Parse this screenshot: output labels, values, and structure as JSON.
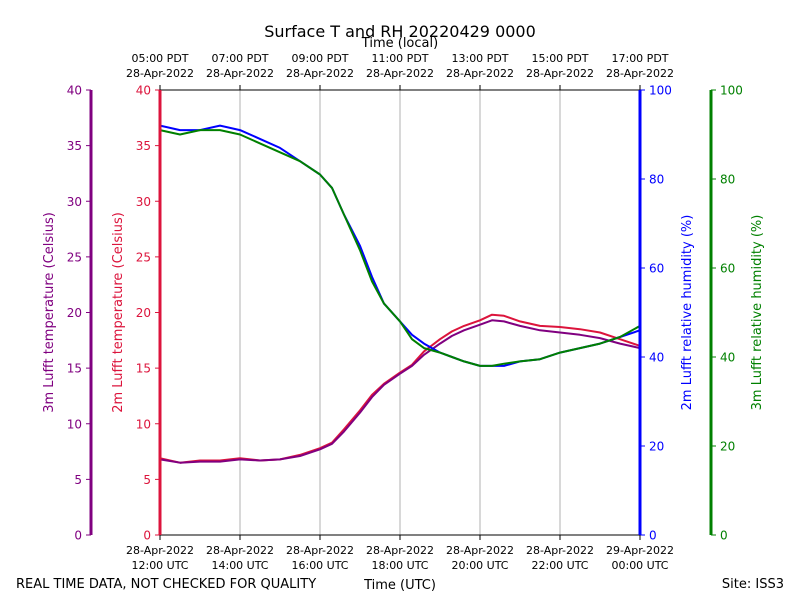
{
  "chart_data": {
    "type": "line",
    "title": "Surface T and RH 20220429 0000",
    "top_axis_title": "Time (local)",
    "xlabel": "Time (UTC)",
    "x_range_utc_hours": [
      12,
      24
    ],
    "x_ticks_utc": [
      {
        "hour": 12,
        "line1": "28-Apr-2022",
        "line2": "12:00 UTC"
      },
      {
        "hour": 14,
        "line1": "28-Apr-2022",
        "line2": "14:00 UTC"
      },
      {
        "hour": 16,
        "line1": "28-Apr-2022",
        "line2": "16:00 UTC"
      },
      {
        "hour": 18,
        "line1": "28-Apr-2022",
        "line2": "18:00 UTC"
      },
      {
        "hour": 20,
        "line1": "28-Apr-2022",
        "line2": "20:00 UTC"
      },
      {
        "hour": 22,
        "line1": "28-Apr-2022",
        "line2": "22:00 UTC"
      },
      {
        "hour": 24,
        "line1": "29-Apr-2022",
        "line2": "00:00 UTC"
      }
    ],
    "x_ticks_local": [
      {
        "hour": 12,
        "line1": "05:00 PDT",
        "line2": "28-Apr-2022"
      },
      {
        "hour": 14,
        "line1": "07:00 PDT",
        "line2": "28-Apr-2022"
      },
      {
        "hour": 16,
        "line1": "09:00 PDT",
        "line2": "28-Apr-2022"
      },
      {
        "hour": 18,
        "line1": "11:00 PDT",
        "line2": "28-Apr-2022"
      },
      {
        "hour": 20,
        "line1": "13:00 PDT",
        "line2": "28-Apr-2022"
      },
      {
        "hour": 22,
        "line1": "15:00 PDT",
        "line2": "28-Apr-2022"
      },
      {
        "hour": 24,
        "line1": "17:00 PDT",
        "line2": "28-Apr-2022"
      }
    ],
    "axes": {
      "t3m": {
        "label": "3m Lufft temperature (Celsius)",
        "range": [
          0,
          40
        ],
        "ticks": [
          0,
          5,
          10,
          15,
          20,
          25,
          30,
          35,
          40
        ],
        "color": "#800080"
      },
      "t2m": {
        "label": "2m Lufft temperature (Celsius)",
        "range": [
          0,
          40
        ],
        "ticks": [
          0,
          5,
          10,
          15,
          20,
          25,
          30,
          35,
          40
        ],
        "color": "#dc143c"
      },
      "rh2m": {
        "label": "2m Lufft relative humidity (%)",
        "range": [
          0,
          100
        ],
        "ticks": [
          0,
          20,
          40,
          60,
          80,
          100
        ],
        "color": "#0000ff"
      },
      "rh3m": {
        "label": "3m Lufft relative humidity (%)",
        "range": [
          0,
          100
        ],
        "ticks": [
          0,
          20,
          40,
          60,
          80,
          100
        ],
        "color": "#008000"
      }
    },
    "series": [
      {
        "name": "2m temperature",
        "axis": "t2m",
        "color": "#dc143c",
        "x": [
          12,
          12.5,
          13,
          13.5,
          14,
          14.5,
          15,
          15.5,
          16,
          16.3,
          16.6,
          17,
          17.3,
          17.6,
          18,
          18.3,
          18.6,
          19,
          19.3,
          19.6,
          20,
          20.3,
          20.6,
          21,
          21.5,
          22,
          22.5,
          23,
          23.5,
          24
        ],
        "values": [
          6.9,
          6.5,
          6.7,
          6.7,
          6.9,
          6.7,
          6.8,
          7.2,
          7.8,
          8.3,
          9.5,
          11.2,
          12.6,
          13.6,
          14.6,
          15.3,
          16.5,
          17.6,
          18.3,
          18.8,
          19.3,
          19.8,
          19.7,
          19.2,
          18.8,
          18.7,
          18.5,
          18.2,
          17.6,
          17.0
        ]
      },
      {
        "name": "3m temperature",
        "axis": "t3m",
        "color": "#800080",
        "x": [
          12,
          12.5,
          13,
          13.5,
          14,
          14.5,
          15,
          15.5,
          16,
          16.3,
          16.6,
          17,
          17.3,
          17.6,
          18,
          18.3,
          18.6,
          19,
          19.3,
          19.6,
          20,
          20.3,
          20.6,
          21,
          21.5,
          22,
          22.5,
          23,
          23.5,
          24
        ],
        "values": [
          6.8,
          6.5,
          6.6,
          6.6,
          6.8,
          6.7,
          6.8,
          7.1,
          7.7,
          8.2,
          9.3,
          11.0,
          12.4,
          13.5,
          14.5,
          15.2,
          16.2,
          17.2,
          17.9,
          18.4,
          18.9,
          19.3,
          19.2,
          18.8,
          18.4,
          18.2,
          18.0,
          17.7,
          17.2,
          16.8
        ]
      },
      {
        "name": "2m relative humidity",
        "axis": "rh2m",
        "color": "#0000ff",
        "x": [
          12,
          12.5,
          13,
          13.5,
          14,
          14.5,
          15,
          15.5,
          16,
          16.3,
          16.6,
          17,
          17.3,
          17.6,
          18,
          18.3,
          18.6,
          19,
          19.3,
          19.6,
          20,
          20.3,
          20.6,
          21,
          21.5,
          22,
          22.5,
          23,
          23.5,
          24
        ],
        "values": [
          92,
          91,
          91,
          92,
          91,
          89,
          87,
          84,
          81,
          78,
          72,
          65,
          58,
          52,
          48,
          45,
          43,
          41,
          40,
          39,
          38,
          38,
          38,
          39,
          39.5,
          41,
          42,
          43,
          44.5,
          46
        ]
      },
      {
        "name": "3m relative humidity",
        "axis": "rh3m",
        "color": "#008000",
        "x": [
          12,
          12.5,
          13,
          13.5,
          14,
          14.5,
          15,
          15.5,
          16,
          16.3,
          16.6,
          17,
          17.3,
          17.6,
          18,
          18.3,
          18.6,
          19,
          19.3,
          19.6,
          20,
          20.3,
          20.6,
          21,
          21.5,
          22,
          22.5,
          23,
          23.5,
          24
        ],
        "values": [
          91,
          90,
          91,
          91,
          90,
          88,
          86,
          84,
          81,
          78,
          72,
          64,
          57,
          52,
          48,
          44,
          42,
          41,
          40,
          39,
          38,
          38,
          38.5,
          39,
          39.5,
          41,
          42,
          43,
          44.5,
          47
        ]
      }
    ]
  },
  "footer": {
    "left": "REAL TIME DATA, NOT CHECKED FOR QUALITY",
    "right": "Site: ISS3"
  }
}
